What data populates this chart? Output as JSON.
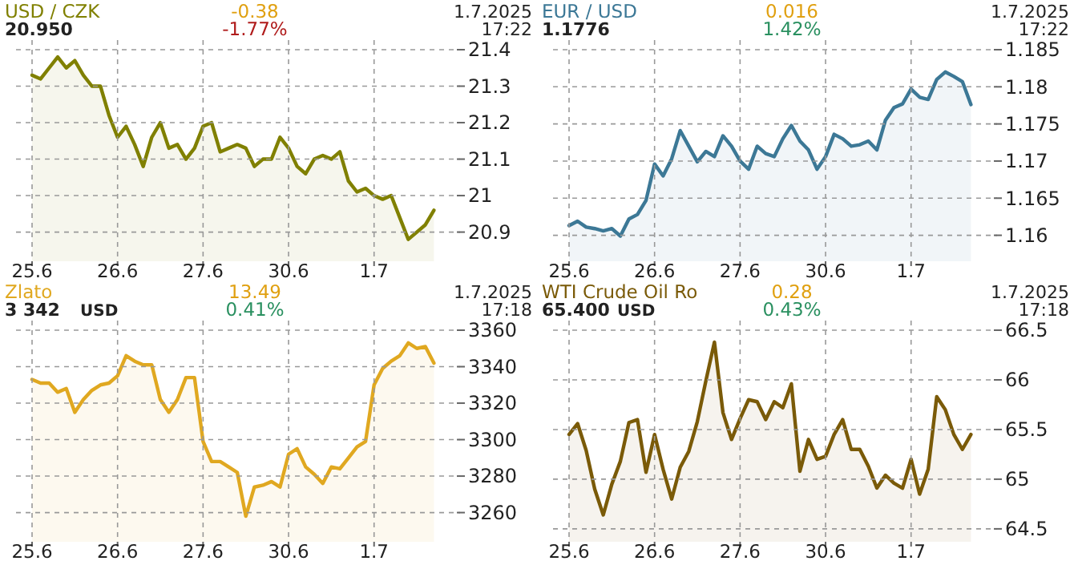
{
  "chart_data": [
    {
      "type": "area",
      "title": "USD / CZK",
      "annotations": [
        "20.950",
        "-0.38",
        "-1.77%",
        "1.7.2025",
        "17:22"
      ],
      "ylim": [
        20.82,
        21.4
      ],
      "yticks": [
        20.9,
        21,
        21.1,
        21.2,
        21.3,
        21.4
      ],
      "grid": true,
      "categories": [
        "25.6",
        null,
        null,
        null,
        null,
        null,
        null,
        null,
        null,
        null,
        "26.6",
        null,
        null,
        null,
        null,
        null,
        null,
        null,
        null,
        null,
        "27.6",
        null,
        null,
        null,
        null,
        null,
        null,
        null,
        null,
        null,
        "30.6",
        null,
        null,
        null,
        null,
        null,
        null,
        null,
        null,
        null,
        "1.7",
        null,
        null,
        null,
        null,
        null,
        null,
        null
      ],
      "series": [
        {
          "color": "#808000",
          "values": [
            21.33,
            21.32,
            21.35,
            21.38,
            21.35,
            21.37,
            21.33,
            21.3,
            21.3,
            21.22,
            21.16,
            21.19,
            21.14,
            21.08,
            21.16,
            21.2,
            21.13,
            21.14,
            21.1,
            21.13,
            21.19,
            21.2,
            21.12,
            21.13,
            21.14,
            21.13,
            21.08,
            21.1,
            21.1,
            21.16,
            21.13,
            21.08,
            21.06,
            21.1,
            21.11,
            21.1,
            21.12,
            21.04,
            21.01,
            21.02,
            21,
            20.99,
            21,
            20.94,
            20.88,
            20.9,
            20.92,
            20.96
          ]
        }
      ]
    },
    {
      "type": "area",
      "title": "EUR / USD",
      "annotations": [
        "1.1776",
        "0.016",
        "1.42%",
        "1.7.2025",
        "17:22"
      ],
      "ylim": [
        1.1565,
        1.185
      ],
      "yticks": [
        1.16,
        1.165,
        1.17,
        1.175,
        1.18,
        1.185
      ],
      "grid": true,
      "categories": [
        "25.6",
        null,
        null,
        null,
        null,
        null,
        null,
        null,
        null,
        null,
        "26.6",
        null,
        null,
        null,
        null,
        null,
        null,
        null,
        null,
        null,
        "27.6",
        null,
        null,
        null,
        null,
        null,
        null,
        null,
        null,
        null,
        "30.6",
        null,
        null,
        null,
        null,
        null,
        null,
        null,
        null,
        null,
        "1.7",
        null,
        null,
        null,
        null,
        null,
        null,
        null
      ],
      "series": [
        {
          "color": "#3c7896",
          "values": [
            1.1613,
            1.1619,
            1.1611,
            1.1609,
            1.1606,
            1.1609,
            1.1599,
            1.1622,
            1.1628,
            1.1647,
            1.1696,
            1.168,
            1.1703,
            1.1741,
            1.172,
            1.1699,
            1.1713,
            1.1706,
            1.1734,
            1.172,
            1.17,
            1.1689,
            1.172,
            1.171,
            1.1706,
            1.173,
            1.1748,
            1.1727,
            1.1715,
            1.1689,
            1.1706,
            1.1736,
            1.173,
            1.172,
            1.1722,
            1.1727,
            1.1715,
            1.1755,
            1.1772,
            1.1777,
            1.1797,
            1.1786,
            1.1783,
            1.181,
            1.182,
            1.1814,
            1.1807,
            1.1776
          ]
        }
      ]
    },
    {
      "type": "area",
      "title": "Zlato",
      "annotations": [
        "3 342",
        "13.49",
        "0.41%",
        "1.7.2025",
        "17:18",
        "USD"
      ],
      "ylim": [
        3244,
        3360
      ],
      "yticks": [
        3260,
        3280,
        3300,
        3320,
        3340,
        3360
      ],
      "grid": true,
      "categories": [
        "25.6",
        null,
        null,
        null,
        null,
        null,
        null,
        null,
        null,
        null,
        "26.6",
        null,
        null,
        null,
        null,
        null,
        null,
        null,
        null,
        null,
        "27.6",
        null,
        null,
        null,
        null,
        null,
        null,
        null,
        null,
        null,
        "30.6",
        null,
        null,
        null,
        null,
        null,
        null,
        null,
        null,
        null,
        "1.7",
        null,
        null,
        null,
        null,
        null,
        null,
        null
      ],
      "series": [
        {
          "color": "#e0a820",
          "values": [
            3333,
            3331,
            3331,
            3326,
            3328,
            3315,
            3322,
            3327,
            3330,
            3331,
            3335,
            3346,
            3343,
            3341,
            3341,
            3322,
            3315,
            3322,
            3334,
            3334,
            3299,
            3288,
            3288,
            3285,
            3282,
            3258,
            3274,
            3275,
            3277,
            3274,
            3292,
            3295,
            3285,
            3281,
            3276,
            3285,
            3284,
            3290,
            3296,
            3299,
            3330,
            3339,
            3343,
            3346,
            3353,
            3350,
            3351,
            3342
          ]
        }
      ]
    },
    {
      "type": "area",
      "title": "WTI Crude Oil Ro",
      "annotations": [
        "65.400",
        "0.28",
        "0.43%",
        "1.7.2025",
        "17:18",
        "USD"
      ],
      "ylim": [
        64.37,
        66.5
      ],
      "yticks": [
        64.5,
        65,
        65.5,
        66,
        66.5
      ],
      "grid": true,
      "categories": [
        "25.6",
        null,
        null,
        null,
        null,
        null,
        null,
        null,
        null,
        null,
        "26.6",
        null,
        null,
        null,
        null,
        null,
        null,
        null,
        null,
        null,
        "27.6",
        null,
        null,
        null,
        null,
        null,
        null,
        null,
        null,
        null,
        "30.6",
        null,
        null,
        null,
        null,
        null,
        null,
        null,
        null,
        null,
        "1.7",
        null,
        null,
        null,
        null,
        null,
        null,
        null
      ],
      "series": [
        {
          "color": "#7a5a08",
          "values": [
            65.45,
            65.56,
            65.29,
            64.9,
            64.64,
            64.95,
            65.18,
            65.57,
            65.6,
            65.07,
            65.45,
            65.1,
            64.8,
            65.12,
            65.28,
            65.58,
            65.99,
            66.38,
            65.67,
            65.4,
            65.61,
            65.8,
            65.78,
            65.6,
            65.78,
            65.72,
            65.96,
            65.08,
            65.4,
            65.2,
            65.23,
            65.45,
            65.6,
            65.3,
            65.3,
            65.13,
            64.91,
            65.04,
            64.96,
            64.91,
            65.2,
            64.85,
            65.1,
            65.83,
            65.7,
            65.45,
            65.3,
            65.45
          ]
        }
      ]
    }
  ]
}
